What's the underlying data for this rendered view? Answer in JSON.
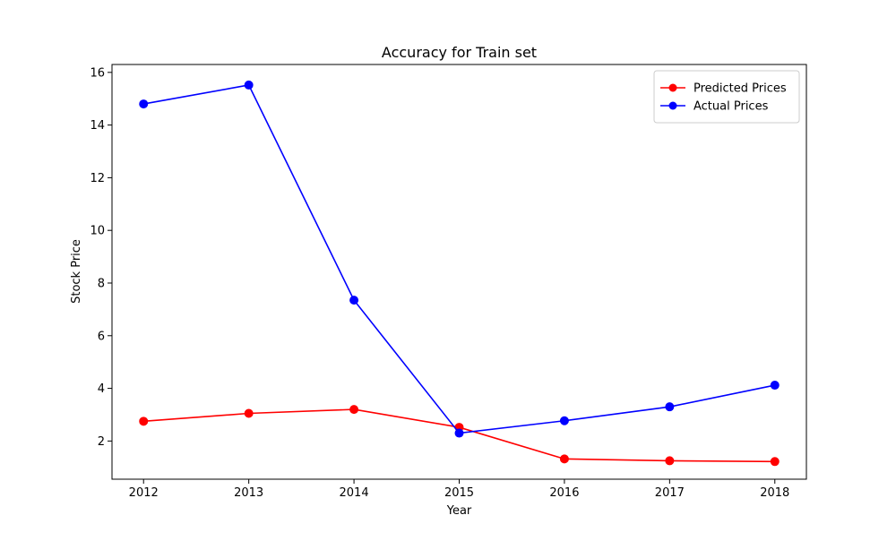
{
  "chart_data": {
    "type": "line",
    "title": "Accuracy for Train set",
    "xlabel": "Year",
    "ylabel": "Stock Price",
    "x": [
      2012,
      2013,
      2014,
      2015,
      2016,
      2017,
      2018
    ],
    "x_tick_labels": [
      "2012",
      "2013",
      "2014",
      "2015",
      "2016",
      "2017",
      "2018"
    ],
    "xlim": [
      2011.7,
      2018.3
    ],
    "ylim": [
      0.55,
      16.3
    ],
    "y_ticks": [
      2,
      4,
      6,
      8,
      10,
      12,
      14,
      16
    ],
    "y_tick_labels": [
      "2",
      "4",
      "6",
      "8",
      "10",
      "12",
      "14",
      "16"
    ],
    "grid": false,
    "legend_position": "top-right",
    "series": [
      {
        "name": "Predicted Prices",
        "color": "#ff0000",
        "marker": "circle",
        "values": [
          2.75,
          3.05,
          3.2,
          2.52,
          1.32,
          1.25,
          1.22
        ]
      },
      {
        "name": "Actual Prices",
        "color": "#0000ff",
        "marker": "circle",
        "values": [
          14.8,
          15.52,
          7.35,
          2.3,
          2.77,
          3.3,
          4.12
        ]
      }
    ]
  }
}
